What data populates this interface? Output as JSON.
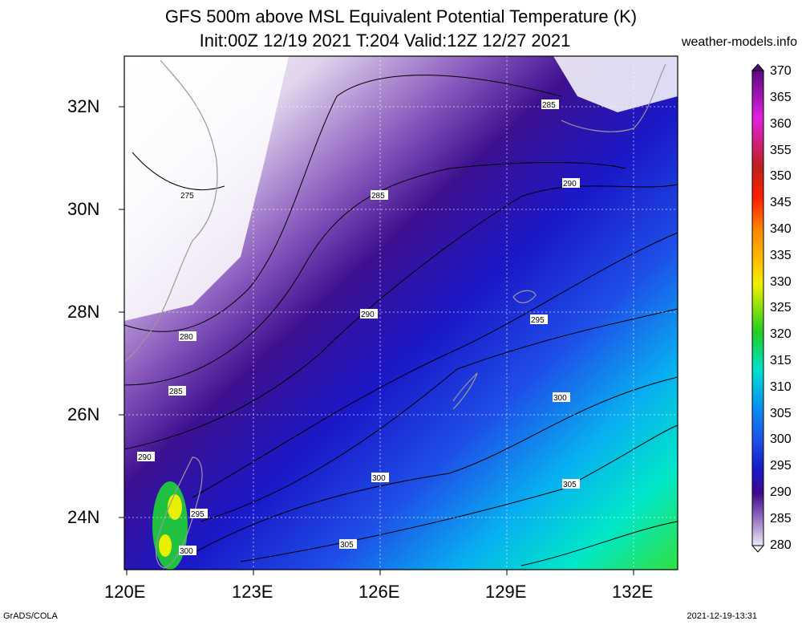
{
  "title": {
    "line1": "GFS 500m above MSL Equivalent Potential Temperature (K)",
    "line2": "Init:00Z 12/19 2021 T:204 Valid:12Z 12/27 2021",
    "site": "weather-models.info"
  },
  "footer": {
    "left": "GrADS/COLA",
    "right": "2021-12-19-13:31"
  },
  "axes": {
    "lat_ticks": [
      "32N",
      "30N",
      "28N",
      "26N",
      "24N"
    ],
    "lon_ticks": [
      "120E",
      "123E",
      "126E",
      "129E",
      "132E"
    ]
  },
  "colorbar": {
    "labels": [
      "370",
      "365",
      "360",
      "355",
      "350",
      "345",
      "340",
      "335",
      "330",
      "325",
      "320",
      "315",
      "310",
      "305",
      "300",
      "295",
      "290",
      "285",
      "280"
    ]
  },
  "contour_labels": [
    "275",
    "280",
    "285",
    "285",
    "285",
    "290",
    "290",
    "290",
    "295",
    "295",
    "300",
    "300",
    "300",
    "305",
    "305"
  ],
  "colors": {
    "cold": "#e8e0f0",
    "mid_purple": "#5a1aa0",
    "deep_blue": "#1818c8",
    "blue": "#1d50e6",
    "cyan": "#00e0d0",
    "green": "#20d020"
  }
}
